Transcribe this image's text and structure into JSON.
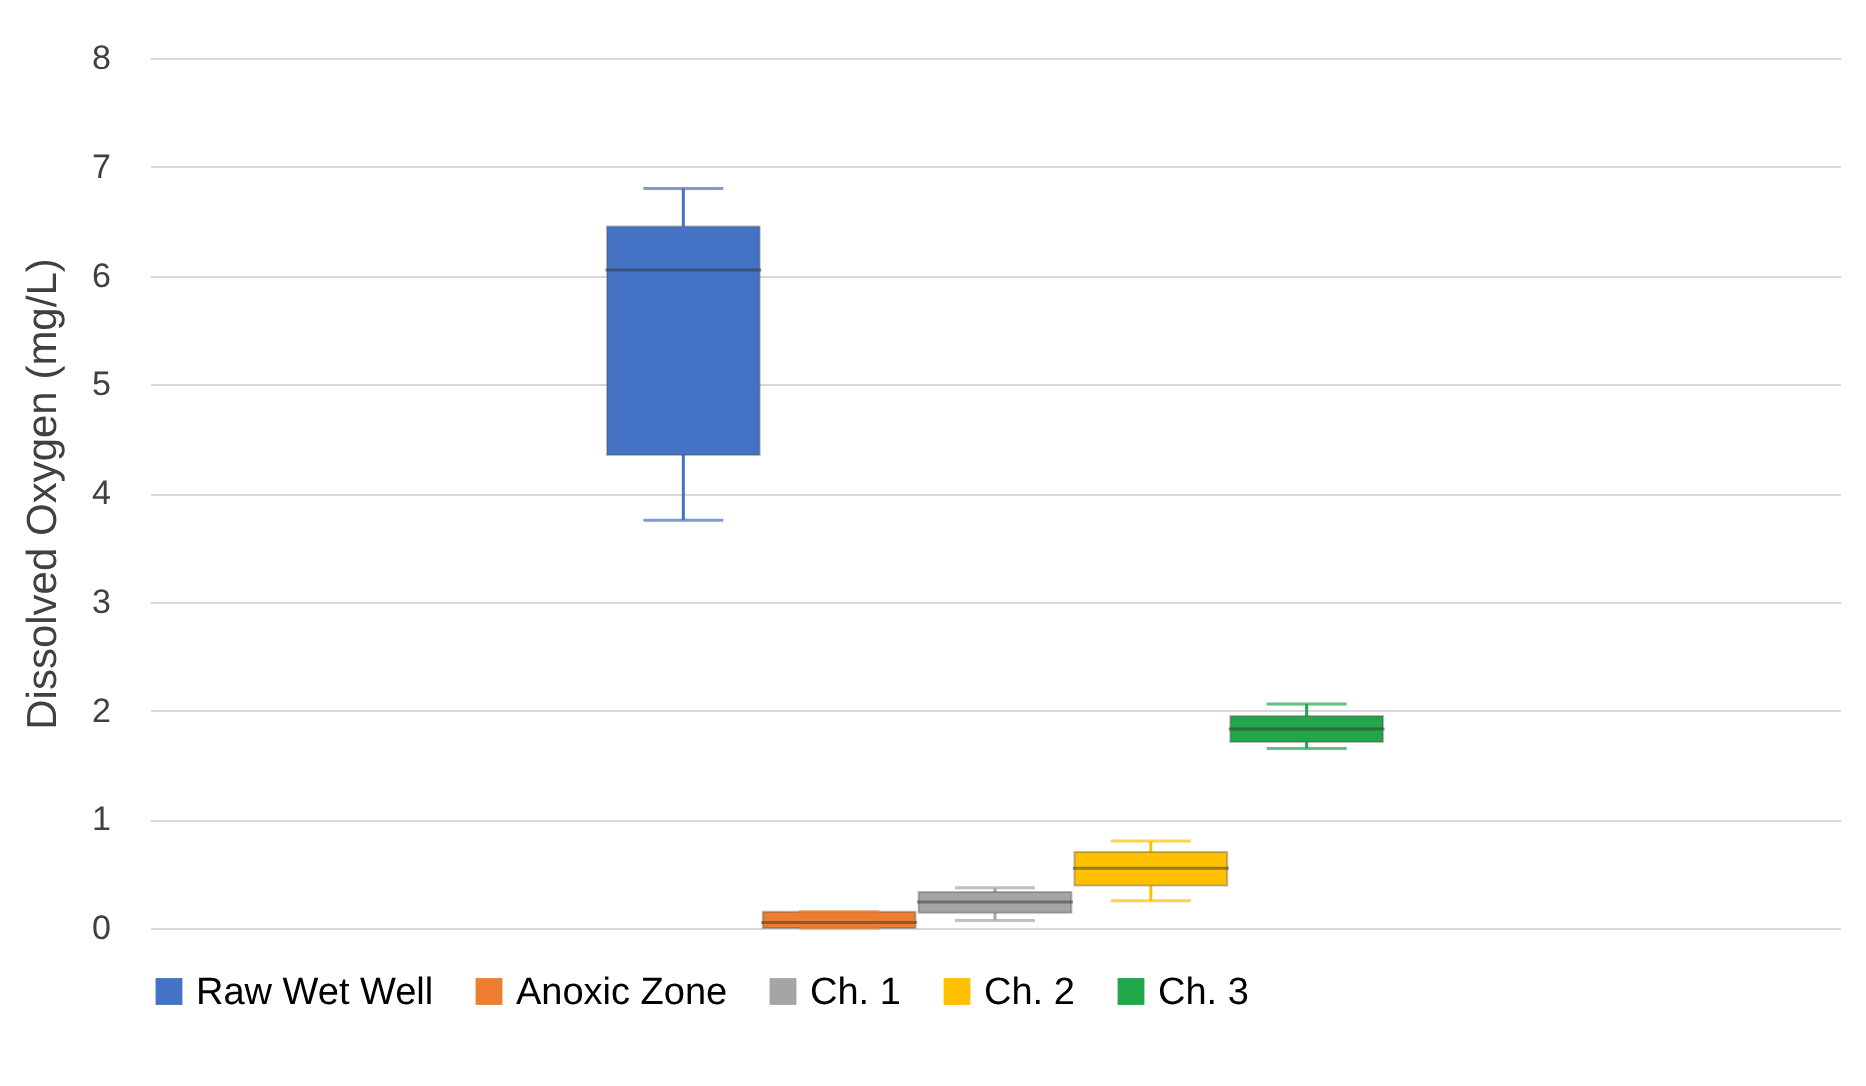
{
  "chart_data": {
    "type": "box",
    "ylabel": "Dissolved Oxygen (mg/L)",
    "categories": [
      null
    ],
    "series": [
      {
        "name": "Raw Wet Well",
        "color": "#4472c4",
        "boxes": [
          {
            "low": 3.75,
            "q1": 4.35,
            "median": 6.05,
            "q3": 6.45,
            "high": 6.8
          }
        ]
      },
      {
        "name": "Anoxic Zone",
        "color": "#ed7d31",
        "boxes": [
          {
            "low": 0,
            "q1": 0,
            "median": 0.05,
            "q3": 0.15,
            "high": 0.15
          }
        ]
      },
      {
        "name": "Ch. 1",
        "color": "#a5a5a5",
        "boxes": [
          {
            "low": 0.07,
            "q1": 0.14,
            "median": 0.24,
            "q3": 0.33,
            "high": 0.37
          }
        ]
      },
      {
        "name": "Ch. 2",
        "color": "#ffc000",
        "boxes": [
          {
            "low": 0.25,
            "q1": 0.39,
            "median": 0.55,
            "q3": 0.7,
            "high": 0.8
          }
        ]
      },
      {
        "name": "Ch. 3",
        "color": "#21a649",
        "boxes": [
          {
            "low": 1.65,
            "q1": 1.71,
            "median": 1.83,
            "q3": 1.95,
            "high": 2.06
          }
        ]
      }
    ],
    "ylim": [
      0,
      8
    ],
    "yticks": [
      0,
      1,
      2,
      3,
      4,
      5,
      6,
      7,
      8
    ],
    "grid": "y",
    "legend": "bottom",
    "tick_labels": "y"
  }
}
